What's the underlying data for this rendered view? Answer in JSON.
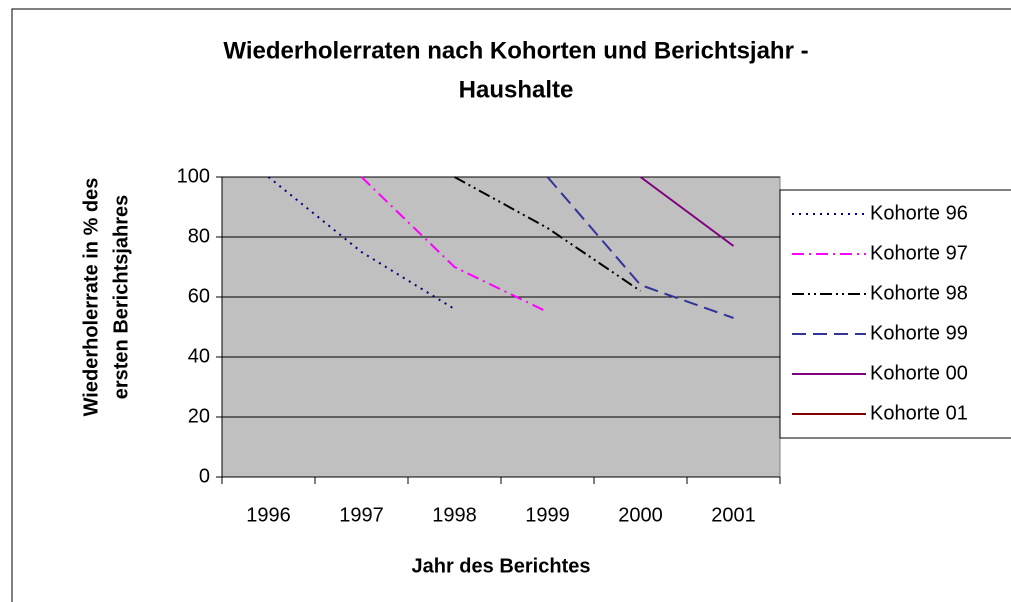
{
  "chart_data": {
    "type": "line",
    "title": [
      "Wiederholerraten nach Kohorten und Berichtsjahr -",
      "Haushalte"
    ],
    "y_label": [
      "Wiederholerrate in % des",
      "ersten Berichtsjahres"
    ],
    "x_label": "Jahr des Berichtes",
    "categories": [
      "1996",
      "1997",
      "1998",
      "1999",
      "2000",
      "2001"
    ],
    "series": [
      {
        "name": "Kohorte 96",
        "color": "#000080",
        "dash": "2,5",
        "values": [
          100,
          75,
          56,
          null,
          null,
          null
        ]
      },
      {
        "name": "Kohorte 97",
        "color": "#ff00ff",
        "dash": "12,5,2,5",
        "values": [
          null,
          100,
          70,
          55,
          null,
          null
        ]
      },
      {
        "name": "Kohorte 98",
        "color": "#000000",
        "dash": "12,4,2,4,2,4",
        "values": [
          null,
          null,
          100,
          83,
          62,
          null
        ]
      },
      {
        "name": "Kohorte 99",
        "color": "#333399",
        "dash": "14,7",
        "values": [
          null,
          null,
          null,
          100,
          64,
          53
        ]
      },
      {
        "name": "Kohorte 00",
        "color": "#800080",
        "dash": "none",
        "values": [
          null,
          null,
          null,
          null,
          100,
          77
        ]
      },
      {
        "name": "Kohorte 01",
        "color": "#800000",
        "dash": "none",
        "values": [
          null,
          null,
          null,
          null,
          null,
          null
        ]
      }
    ],
    "ylim": [
      0,
      100
    ],
    "yticks": [
      0,
      20,
      40,
      60,
      80,
      100
    ],
    "grid": true,
    "legend": "right"
  }
}
